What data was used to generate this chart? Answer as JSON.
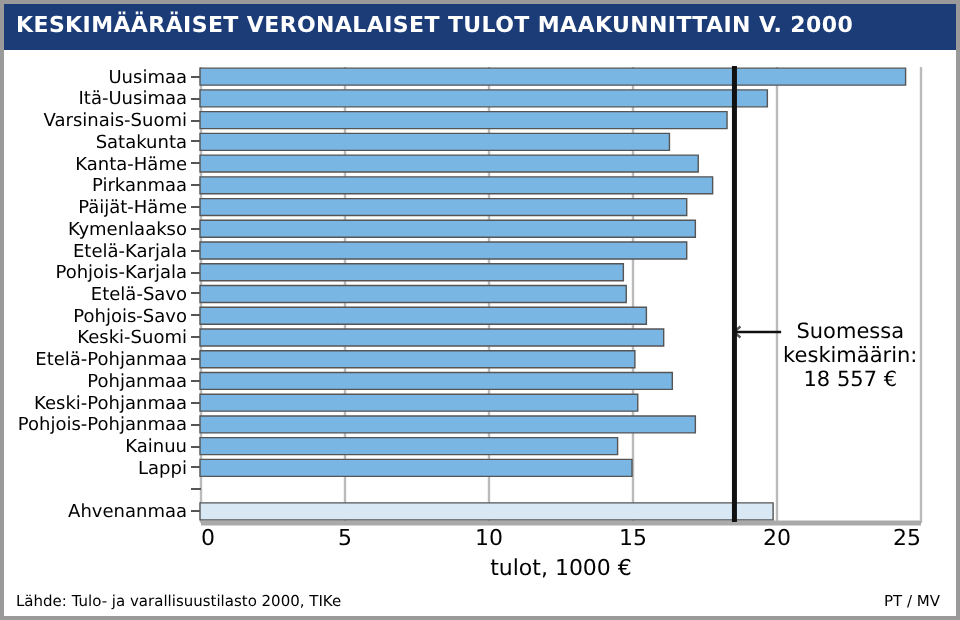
{
  "chart_data": {
    "type": "bar",
    "orientation": "horizontal",
    "title": "KESKIMÄÄRÄISET VERONALAISET TULOT MAAKUNNITTAIN V. 2000",
    "xlabel": "tulot, 1000 €",
    "categories": [
      "Uusimaa",
      "Itä-Uusimaa",
      "Varsinais-Suomi",
      "Satakunta",
      "Kanta-Häme",
      "Pirkanmaa",
      "Päijät-Häme",
      "Kymenlaakso",
      "Etelä-Karjala",
      "Pohjois-Karjala",
      "Etelä-Savo",
      "Pohjois-Savo",
      "Keski-Suomi",
      "Etelä-Pohjanmaa",
      "Pohjanmaa",
      "Keski-Pohjanmaa",
      "Pohjois-Pohjanmaa",
      "Kainuu",
      "Lappi",
      null,
      "Ahvenanmaa"
    ],
    "values": [
      24.5,
      19.7,
      18.3,
      16.3,
      17.3,
      17.8,
      16.9,
      17.2,
      16.9,
      14.7,
      14.8,
      15.5,
      16.1,
      15.1,
      16.4,
      15.2,
      17.2,
      14.5,
      15.0,
      null,
      19.9
    ],
    "colors": [
      "#7ab6e4",
      "#7ab6e4",
      "#7ab6e4",
      "#7ab6e4",
      "#7ab6e4",
      "#7ab6e4",
      "#7ab6e4",
      "#7ab6e4",
      "#7ab6e4",
      "#7ab6e4",
      "#7ab6e4",
      "#7ab6e4",
      "#7ab6e4",
      "#7ab6e4",
      "#7ab6e4",
      "#7ab6e4",
      "#7ab6e4",
      "#7ab6e4",
      "#7ab6e4",
      "#7ab6e4",
      "#d8e9f5"
    ],
    "xlim": [
      0,
      25
    ],
    "xticks": [
      0,
      5,
      10,
      15,
      20,
      25
    ],
    "grid": "x",
    "ref_lines": [
      {
        "axis": "x",
        "value": 18.557,
        "label": "Suomessa\nkeskimäärin:\n18 557 €",
        "color": "#111111"
      }
    ],
    "annotations": [
      "Lähde: Tulo- ja varallisuustilasto 2000, TIKe",
      "PT / MV"
    ]
  }
}
